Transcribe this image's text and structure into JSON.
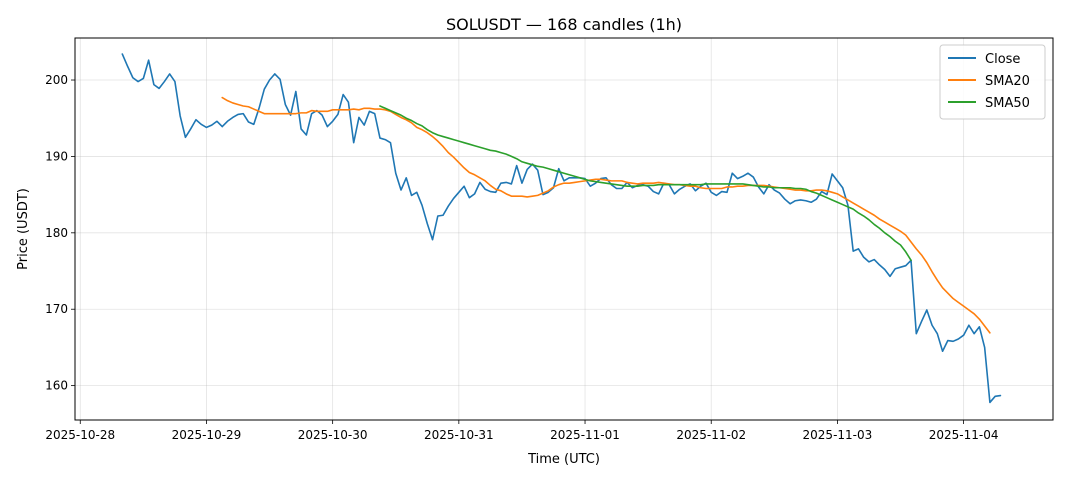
{
  "chart_data": {
    "type": "line",
    "title": "SOLUSDT — 168 candles (1h)",
    "xlabel": "Time (UTC)",
    "ylabel": "Price (USDT)",
    "x_axis_type": "datetime",
    "x_start": "2025-10-28T08:00:00Z",
    "x_step_hours": 1,
    "xlim": [
      "2025-10-27T23:00:00Z",
      "2025-11-04T17:00:00Z"
    ],
    "ylim": [
      155.5,
      205.5
    ],
    "x_ticks": [
      "2025-10-28",
      "2025-10-29",
      "2025-10-30",
      "2025-10-31",
      "2025-11-01",
      "2025-11-02",
      "2025-11-03",
      "2025-11-04"
    ],
    "y_ticks": [
      160,
      170,
      180,
      190,
      200
    ],
    "grid": true,
    "legend_position": "upper right",
    "series": [
      {
        "name": "Close",
        "color": "#1f77b4",
        "values": [
          203.4,
          201.8,
          200.3,
          199.8,
          200.2,
          202.6,
          199.4,
          198.9,
          199.8,
          200.8,
          199.8,
          195.3,
          192.5,
          193.6,
          194.8,
          194.2,
          193.8,
          194.1,
          194.6,
          193.9,
          194.6,
          195.1,
          195.5,
          195.6,
          194.5,
          194.2,
          196.3,
          198.8,
          200.0,
          200.8,
          200.1,
          196.8,
          195.4,
          198.5,
          193.6,
          192.8,
          195.6,
          196.0,
          195.4,
          193.9,
          194.6,
          195.5,
          198.1,
          197.1,
          191.8,
          195.1,
          194.1,
          195.9,
          195.6,
          192.4,
          192.2,
          191.8,
          187.8,
          185.6,
          187.2,
          184.9,
          185.3,
          183.6,
          181.2,
          179.1,
          182.2,
          182.3,
          183.5,
          184.5,
          185.3,
          186.1,
          184.6,
          185.1,
          186.6,
          185.7,
          185.4,
          185.3,
          186.5,
          186.6,
          186.4,
          188.8,
          186.5,
          188.3,
          189.0,
          188.2,
          185.0,
          185.3,
          185.9,
          188.4,
          186.8,
          187.2,
          187.2,
          187.2,
          187.1,
          186.1,
          186.5,
          187.1,
          187.2,
          186.3,
          185.8,
          185.8,
          186.6,
          185.9,
          186.2,
          186.3,
          186.1,
          185.4,
          185.1,
          186.5,
          186.3,
          185.1,
          185.7,
          186.1,
          186.4,
          185.5,
          186.1,
          186.5,
          185.3,
          184.9,
          185.4,
          185.3,
          187.8,
          187.1,
          187.4,
          187.8,
          187.3,
          186.0,
          185.1,
          186.3,
          185.6,
          185.2,
          184.4,
          183.8,
          184.2,
          184.3,
          184.2,
          184.0,
          184.4,
          185.4,
          185.0,
          187.7,
          186.8,
          185.9,
          183.6,
          177.6,
          177.9,
          176.8,
          176.2,
          176.5,
          175.8,
          175.2,
          174.3,
          175.3,
          175.5,
          175.7,
          176.4,
          166.8,
          168.4,
          169.9,
          167.9,
          166.8,
          164.5,
          165.9,
          165.8,
          166.1,
          166.6,
          167.9,
          166.8,
          167.7,
          165.0,
          157.8,
          158.6,
          158.7
        ]
      },
      {
        "name": "SMA20",
        "color": "#ff7f0e",
        "values": [
          null,
          null,
          null,
          null,
          null,
          null,
          null,
          null,
          null,
          null,
          null,
          null,
          null,
          null,
          null,
          null,
          null,
          null,
          null,
          197.7,
          197.3,
          197.0,
          196.8,
          196.6,
          196.5,
          196.2,
          195.9,
          195.6,
          195.6,
          195.6,
          195.6,
          195.6,
          195.6,
          195.6,
          195.7,
          195.7,
          196.0,
          195.9,
          195.9,
          195.9,
          196.1,
          196.1,
          196.1,
          196.1,
          196.2,
          196.1,
          196.3,
          196.3,
          196.2,
          196.2,
          196.1,
          195.9,
          195.5,
          195.1,
          194.8,
          194.4,
          193.8,
          193.5,
          193.1,
          192.6,
          192.0,
          191.3,
          190.5,
          189.9,
          189.2,
          188.5,
          187.9,
          187.6,
          187.2,
          186.8,
          186.2,
          185.7,
          185.5,
          185.1,
          184.8,
          184.8,
          184.8,
          184.7,
          184.8,
          184.9,
          185.2,
          185.5,
          186.0,
          186.3,
          186.5,
          186.5,
          186.6,
          186.7,
          186.8,
          186.9,
          187.0,
          187.0,
          186.9,
          186.8,
          186.8,
          186.8,
          186.6,
          186.5,
          186.4,
          186.5,
          186.5,
          186.5,
          186.6,
          186.5,
          186.4,
          186.3,
          186.3,
          186.2,
          186.1,
          186.1,
          185.9,
          185.8,
          185.8,
          185.8,
          185.8,
          186.0,
          186.0,
          186.1,
          186.1,
          186.2,
          186.2,
          186.2,
          186.2,
          186.1,
          186.0,
          185.9,
          185.8,
          185.7,
          185.6,
          185.6,
          185.5,
          185.5,
          185.6,
          185.6,
          185.5,
          185.3,
          185.1,
          184.7,
          184.3,
          183.9,
          183.5,
          183.1,
          182.7,
          182.3,
          181.8,
          181.4,
          181.0,
          180.6,
          180.2,
          179.7,
          178.8,
          177.9,
          177.1,
          176.1,
          174.9,
          173.8,
          172.8,
          172.1,
          171.4,
          170.9,
          170.4,
          169.9,
          169.4,
          168.7,
          167.8,
          166.9
        ]
      },
      {
        "name": "SMA50",
        "color": "#2ca02c",
        "values": [
          null,
          null,
          null,
          null,
          null,
          null,
          null,
          null,
          null,
          null,
          null,
          null,
          null,
          null,
          null,
          null,
          null,
          null,
          null,
          null,
          null,
          null,
          null,
          null,
          null,
          null,
          null,
          null,
          null,
          null,
          null,
          null,
          null,
          null,
          null,
          null,
          null,
          null,
          null,
          null,
          null,
          null,
          null,
          null,
          null,
          null,
          null,
          null,
          null,
          196.6,
          196.3,
          196.0,
          195.7,
          195.4,
          195.0,
          194.7,
          194.3,
          194.0,
          193.5,
          193.1,
          192.8,
          192.6,
          192.4,
          192.2,
          192.0,
          191.8,
          191.6,
          191.4,
          191.2,
          191.0,
          190.8,
          190.7,
          190.5,
          190.3,
          190.0,
          189.7,
          189.3,
          189.1,
          188.9,
          188.7,
          188.6,
          188.4,
          188.2,
          188.0,
          187.8,
          187.6,
          187.4,
          187.2,
          187.0,
          186.8,
          186.7,
          186.6,
          186.5,
          186.4,
          186.3,
          186.2,
          186.1,
          186.1,
          186.1,
          186.2,
          186.2,
          186.2,
          186.3,
          186.3,
          186.3,
          186.3,
          186.3,
          186.3,
          186.3,
          186.3,
          186.3,
          186.4,
          186.4,
          186.4,
          186.4,
          186.4,
          186.4,
          186.4,
          186.4,
          186.3,
          186.2,
          186.1,
          186.0,
          186.0,
          185.9,
          185.9,
          185.9,
          185.9,
          185.8,
          185.8,
          185.7,
          185.4,
          185.2,
          184.9,
          184.6,
          184.3,
          184.0,
          183.7,
          183.4,
          183.1,
          182.6,
          182.2,
          181.7,
          181.1,
          180.6,
          180.0,
          179.5,
          178.9,
          178.4,
          177.5,
          176.4
        ]
      }
    ]
  }
}
